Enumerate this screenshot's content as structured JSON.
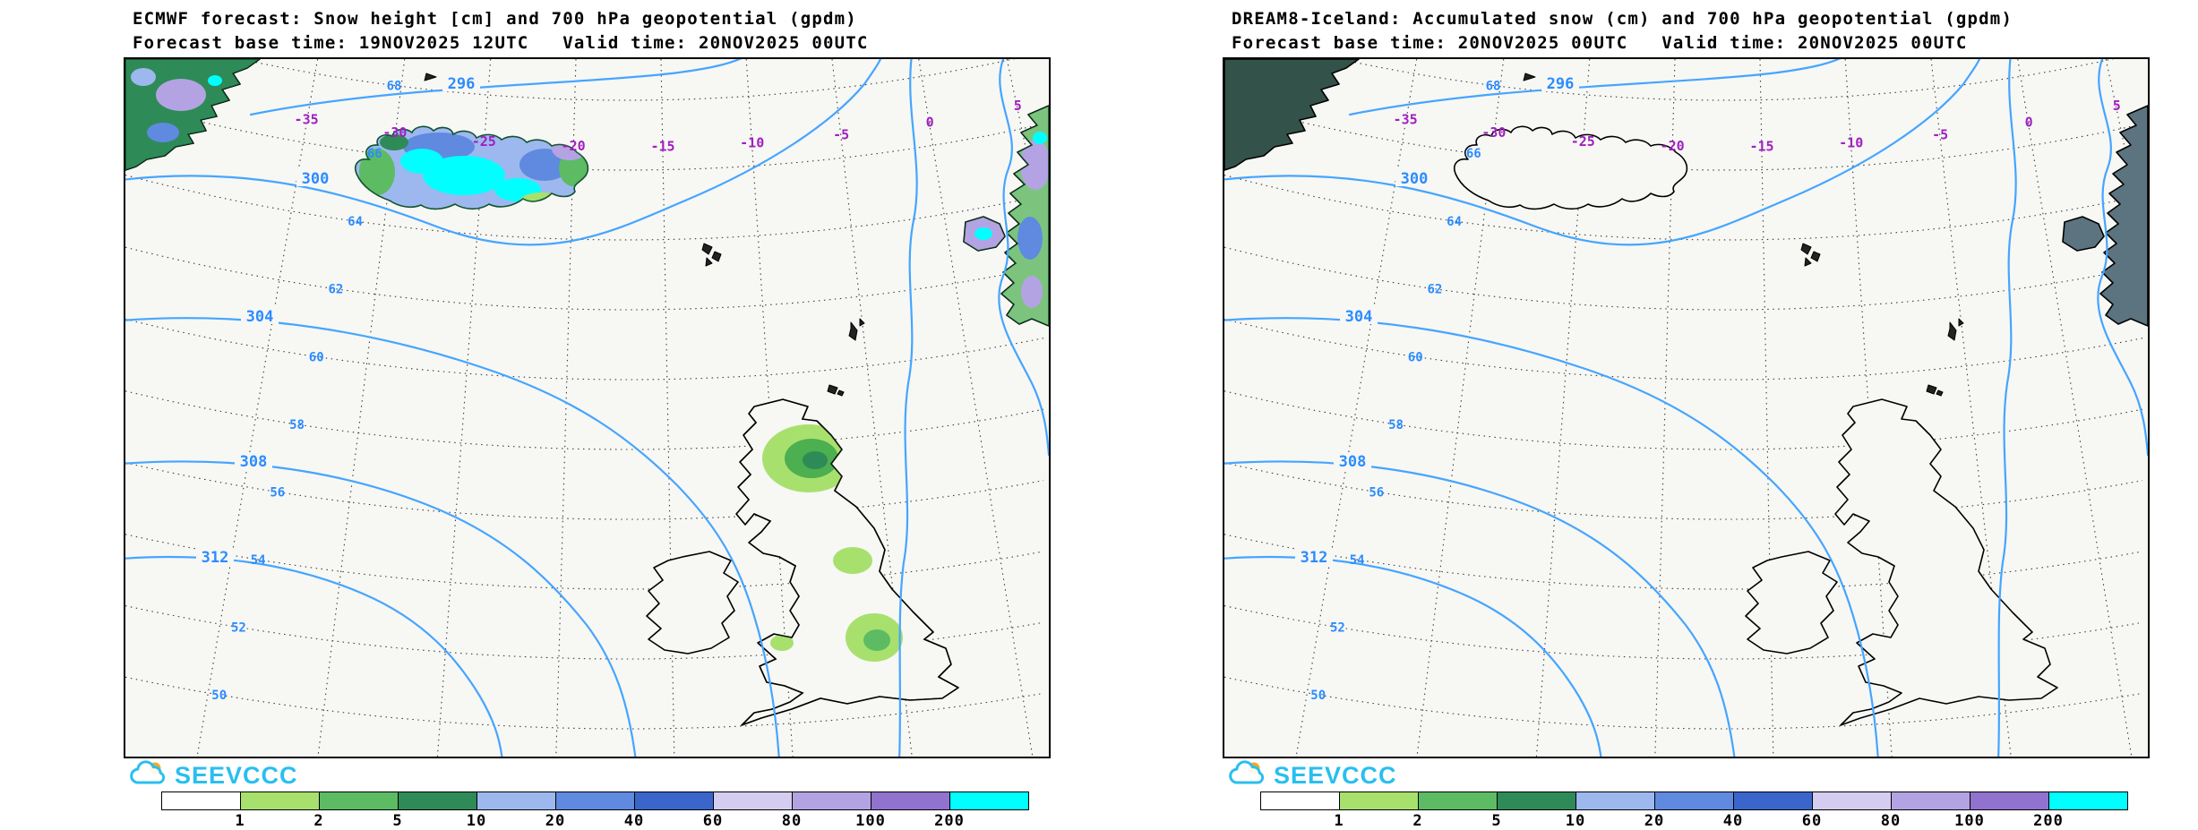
{
  "panels": [
    {
      "title": "ECMWF forecast: Snow height [cm] and 700 hPa geopotential (gpdm)",
      "subtitle": "Forecast base time: 19NOV2025 12UTC   Valid time: 20NOV2025 00UTC",
      "logo_text": "SEEVCCC",
      "snow_field_shown": true
    },
    {
      "title": "DREAM8-Iceland: Accumulated snow (cm) and 700 hPa geopotential (gpdm)",
      "subtitle": "Forecast base time: 20NOV2025 00UTC   Valid time: 20NOV2025 00UTC",
      "logo_text": "SEEVCCC",
      "snow_field_shown": false
    }
  ],
  "map_labels": {
    "geopotential_contours": [
      "296",
      "300",
      "304",
      "308",
      "312"
    ],
    "longitude": [
      "-35",
      "-30",
      "-25",
      "-20",
      "-15",
      "-10",
      "-5",
      "0",
      "5"
    ],
    "latitude": [
      "68",
      "66",
      "64",
      "62",
      "60",
      "58",
      "56",
      "54",
      "52",
      "50"
    ]
  },
  "colorbar": {
    "labels": [
      "1",
      "2",
      "5",
      "10",
      "20",
      "40",
      "60",
      "80",
      "100",
      "200"
    ],
    "colors": [
      "#ffffff",
      "#a8e06e",
      "#5dbb63",
      "#2e8b57",
      "#9db8ee",
      "#5f8ae0",
      "#3a66cc",
      "#d5cdf0",
      "#b4a3e3",
      "#9172cf",
      "#00ffff"
    ]
  },
  "colors": {
    "contour": "#45a5ff",
    "contour_label": "#2b8cff",
    "lat_label": "#2b8cff",
    "lon_label": "#a020c0",
    "logo": "#29bfef"
  }
}
